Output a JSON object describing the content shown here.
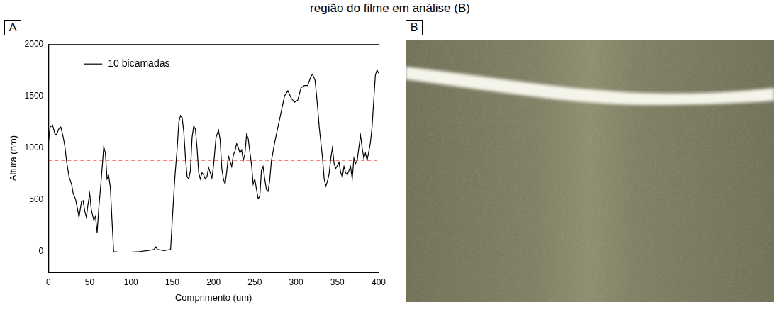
{
  "heading": "região do filme em análise (B)",
  "panel_letters": [
    "A",
    "B"
  ],
  "chart_data": {
    "type": "line",
    "x_label": "Comprimento (um)",
    "y_label": "Altura (nm)",
    "xlim": [
      0,
      400
    ],
    "xticks": [
      0,
      50,
      100,
      150,
      200,
      250,
      300,
      350,
      400
    ],
    "ylim": [
      -200,
      2000
    ],
    "yticks": [
      0,
      500,
      1000,
      1500,
      2000
    ],
    "grid": false,
    "legend": "upper left",
    "x": [
      0,
      2,
      5,
      8,
      10,
      13,
      15,
      18,
      20,
      22,
      25,
      28,
      30,
      33,
      35,
      37,
      40,
      42,
      44,
      46,
      48,
      50,
      52,
      55,
      57,
      59,
      61,
      63,
      65,
      67,
      69,
      71,
      73,
      75,
      77,
      79,
      85,
      100,
      110,
      120,
      128,
      130,
      132,
      140,
      148,
      150,
      153,
      156,
      158,
      160,
      162,
      164,
      166,
      168,
      170,
      172,
      174,
      176,
      178,
      180,
      182,
      184,
      186,
      188,
      190,
      192,
      194,
      196,
      198,
      200,
      203,
      206,
      208,
      210,
      212,
      214,
      216,
      218,
      220,
      222,
      224,
      226,
      228,
      230,
      232,
      234,
      236,
      238,
      240,
      242,
      244,
      246,
      248,
      250,
      252,
      254,
      256,
      258,
      260,
      262,
      264,
      266,
      268,
      270,
      274,
      278,
      282,
      286,
      290,
      294,
      298,
      302,
      306,
      310,
      314,
      318,
      320,
      323,
      326,
      328,
      330,
      332,
      334,
      336,
      338,
      340,
      342,
      344,
      346,
      348,
      350,
      352,
      354,
      356,
      358,
      360,
      362,
      364,
      366,
      368,
      370,
      372,
      374,
      376,
      378,
      380,
      382,
      384,
      386,
      388,
      390,
      392,
      394,
      396,
      398,
      400
    ],
    "series": [
      {
        "name": "10 bicamadas",
        "color": "#000000",
        "line_style": "solid",
        "values": [
          1050,
          1200,
          1220,
          1130,
          1130,
          1190,
          1200,
          1100,
          1010,
          870,
          720,
          650,
          560,
          500,
          420,
          330,
          480,
          490,
          390,
          330,
          460,
          560,
          400,
          300,
          340,
          180,
          420,
          600,
          800,
          1010,
          950,
          700,
          730,
          620,
          300,
          0,
          -5,
          -5,
          0,
          10,
          20,
          45,
          20,
          10,
          20,
          300,
          700,
          1000,
          1250,
          1310,
          1290,
          1150,
          900,
          720,
          700,
          780,
          1100,
          1210,
          1180,
          1000,
          760,
          700,
          760,
          740,
          700,
          720,
          810,
          760,
          710,
          830,
          1100,
          1170,
          1080,
          800,
          700,
          650,
          770,
          920,
          870,
          820,
          930,
          970,
          1040,
          1000,
          950,
          980,
          880,
          940,
          1130,
          1090,
          960,
          840,
          650,
          700,
          600,
          510,
          530,
          780,
          820,
          700,
          600,
          580,
          680,
          870,
          1050,
          1200,
          1350,
          1500,
          1550,
          1480,
          1440,
          1460,
          1580,
          1600,
          1600,
          1690,
          1710,
          1650,
          1400,
          1200,
          1050,
          900,
          700,
          630,
          680,
          750,
          900,
          1000,
          850,
          800,
          830,
          860,
          760,
          720,
          820,
          760,
          740,
          780,
          820,
          700,
          900,
          850,
          880,
          1000,
          1120,
          1000,
          900,
          950,
          880,
          960,
          1050,
          1200,
          1450,
          1700,
          1750,
          1720
        ]
      }
    ],
    "reference_line": {
      "value": 880,
      "color": "#ff0000",
      "line_style": "dashed"
    }
  }
}
